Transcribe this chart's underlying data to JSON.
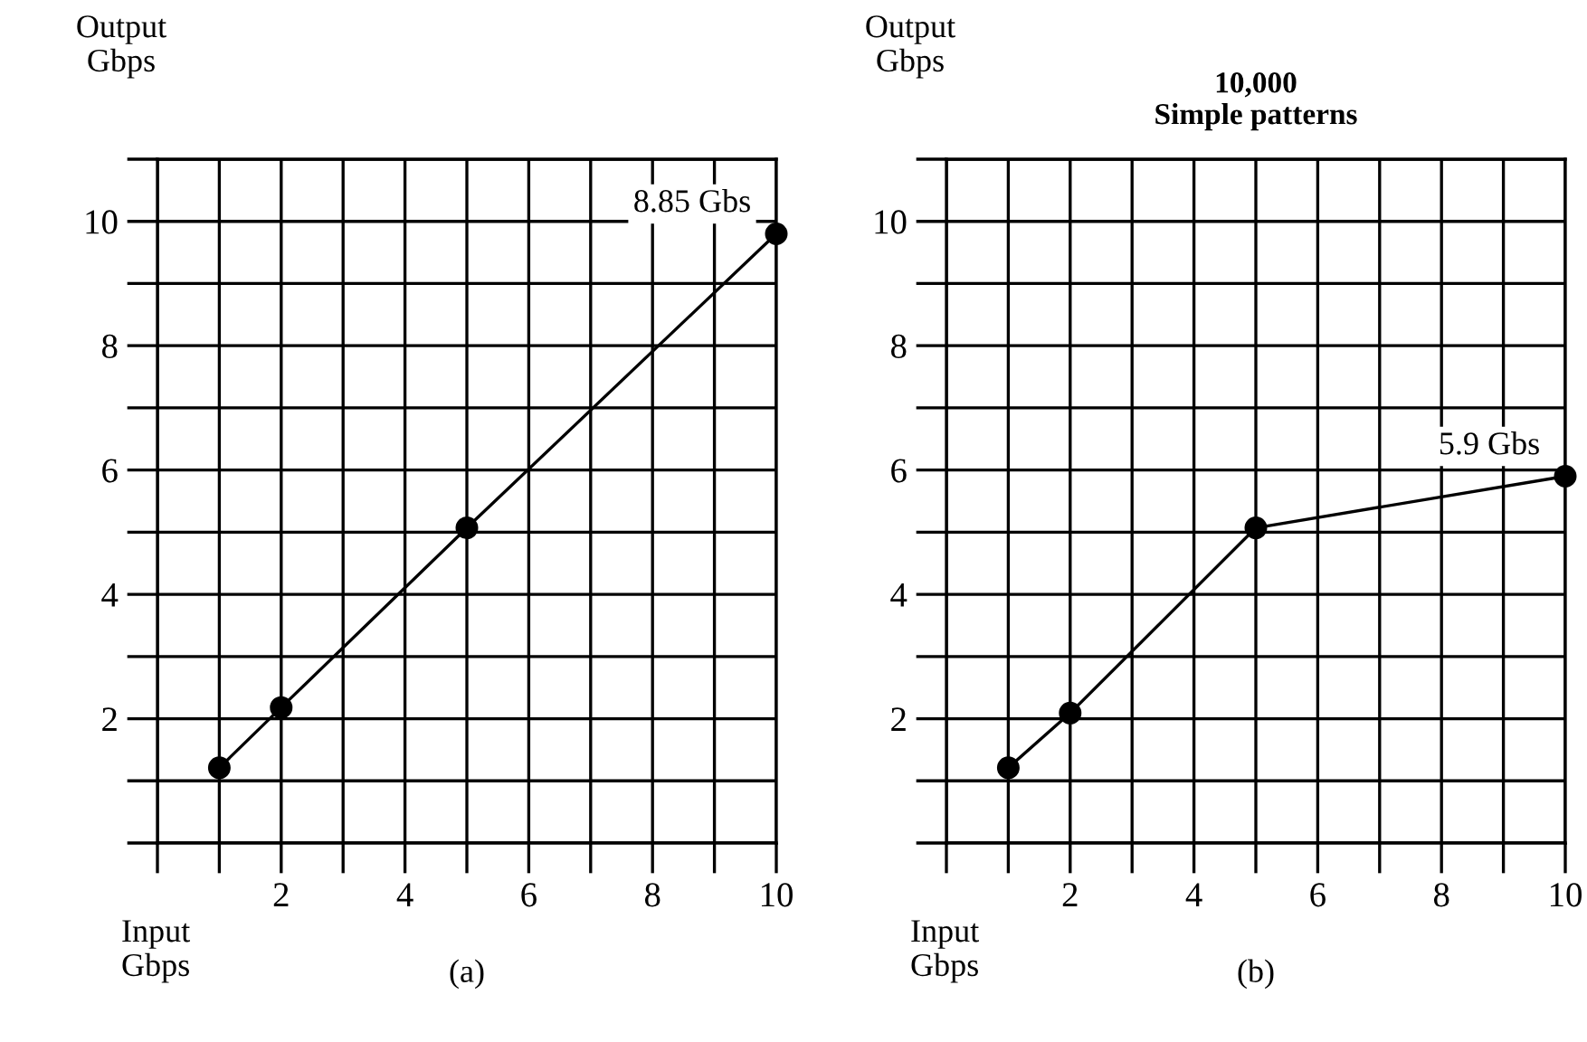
{
  "chart_data": [
    {
      "type": "line",
      "ylabel": "Output\nGbps",
      "xlabel": "Input\nGbps",
      "x": [
        1,
        2,
        5,
        10
      ],
      "values": [
        1.21,
        2.18,
        5.07,
        9.8
      ],
      "color": "#000000",
      "marker": "circle",
      "line_style": "solid",
      "grid": true,
      "xlim": [
        0,
        10
      ],
      "ylim": [
        0,
        11
      ],
      "xticks": [
        {
          "value": 0,
          "label": null
        },
        {
          "value": 1,
          "label": null
        },
        2,
        {
          "value": 3,
          "label": null
        },
        4,
        {
          "value": 5,
          "label": null
        },
        6,
        {
          "value": 7,
          "label": null
        },
        8,
        {
          "value": 9,
          "label": null
        },
        10
      ],
      "yticks": [
        {
          "value": 0,
          "label": null
        },
        {
          "value": 1,
          "label": null
        },
        2,
        {
          "value": 3,
          "label": null
        },
        4,
        {
          "value": 5,
          "label": null
        },
        6,
        {
          "value": 7,
          "label": null
        },
        8,
        {
          "value": 9,
          "label": null
        },
        10,
        {
          "value": 11,
          "label": null
        }
      ],
      "annotations": [
        {
          "text": "8.85 Gbs",
          "x": 10,
          "y": 9.8
        },
        "(a)"
      ]
    },
    {
      "type": "line",
      "title": "10,000\nSimple patterns",
      "ylabel": "Output\nGbps",
      "xlabel": "Input\nGbps",
      "x": [
        1,
        2,
        5,
        10
      ],
      "values": [
        1.21,
        2.09,
        5.07,
        5.9
      ],
      "color": "#000000",
      "marker": "circle",
      "line_style": "solid",
      "grid": true,
      "xlim": [
        0,
        10
      ],
      "ylim": [
        0,
        11
      ],
      "xticks": [
        {
          "value": 0,
          "label": null
        },
        {
          "value": 1,
          "label": null
        },
        2,
        {
          "value": 3,
          "label": null
        },
        4,
        {
          "value": 5,
          "label": null
        },
        6,
        {
          "value": 7,
          "label": null
        },
        8,
        {
          "value": 9,
          "label": null
        },
        10
      ],
      "yticks": [
        {
          "value": 0,
          "label": null
        },
        {
          "value": 1,
          "label": null
        },
        2,
        {
          "value": 3,
          "label": null
        },
        4,
        {
          "value": 5,
          "label": null
        },
        6,
        {
          "value": 7,
          "label": null
        },
        8,
        {
          "value": 9,
          "label": null
        },
        10,
        {
          "value": 11,
          "label": null
        }
      ],
      "annotations": [
        {
          "text": "5.9 Gbs",
          "x": 10,
          "y": 5.9
        },
        "(b)"
      ]
    }
  ]
}
